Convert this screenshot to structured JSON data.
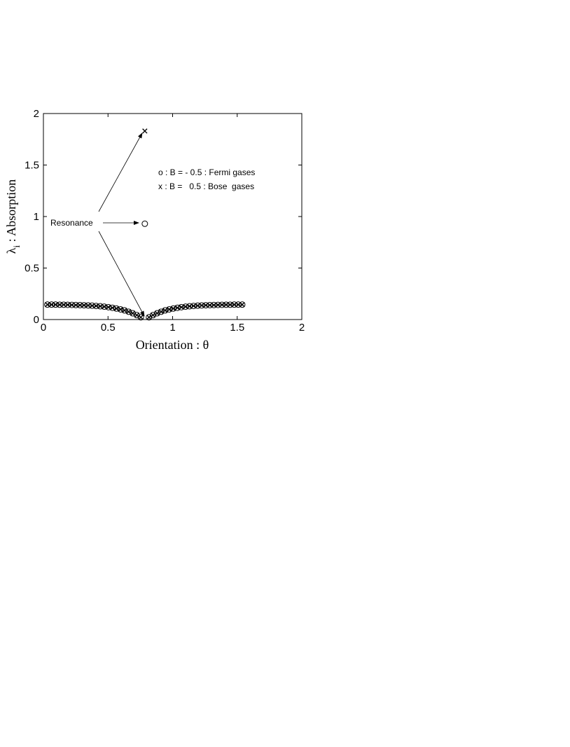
{
  "chart_data": {
    "type": "scatter",
    "xlabel": "Orientation : θ",
    "ylabel": {
      "symbol": "λ",
      "subscript": "i",
      "text": " :  Absorption"
    },
    "annotation": "Resonance",
    "xlim": [
      0,
      2
    ],
    "ylim": [
      0,
      2
    ],
    "xticks": [
      0,
      0.5,
      1,
      1.5,
      2
    ],
    "yticks": [
      0,
      0.5,
      1,
      1.5,
      2
    ],
    "x": [
      0.031,
      0.063,
      0.094,
      0.126,
      0.157,
      0.188,
      0.22,
      0.251,
      0.283,
      0.314,
      0.346,
      0.377,
      0.408,
      0.44,
      0.471,
      0.503,
      0.534,
      0.565,
      0.597,
      0.628,
      0.66,
      0.691,
      0.723,
      0.754,
      0.785,
      0.817,
      0.848,
      0.88,
      0.911,
      0.942,
      0.974,
      1.005,
      1.037,
      1.068,
      1.1,
      1.131,
      1.162,
      1.194,
      1.225,
      1.257,
      1.288,
      1.319,
      1.351,
      1.382,
      1.414,
      1.445,
      1.477,
      1.508,
      1.539
    ],
    "series": [
      {
        "name": "o : B = - 0.5 : Fermi gases",
        "marker": "o",
        "color": "#000000",
        "values": [
          0.145,
          0.145,
          0.145,
          0.144,
          0.144,
          0.143,
          0.142,
          0.141,
          0.14,
          0.139,
          0.137,
          0.135,
          0.132,
          0.129,
          0.125,
          0.12,
          0.114,
          0.107,
          0.099,
          0.089,
          0.076,
          0.061,
          0.043,
          0.022,
          0.93,
          0.022,
          0.043,
          0.061,
          0.076,
          0.089,
          0.099,
          0.107,
          0.114,
          0.12,
          0.125,
          0.129,
          0.132,
          0.135,
          0.137,
          0.139,
          0.14,
          0.141,
          0.142,
          0.143,
          0.144,
          0.144,
          0.145,
          0.145,
          0.145
        ]
      },
      {
        "name": "x : B =   0.5 : Bose  gases",
        "marker": "x",
        "color": "#000000",
        "values": [
          0.145,
          0.145,
          0.145,
          0.144,
          0.144,
          0.143,
          0.142,
          0.141,
          0.14,
          0.139,
          0.137,
          0.135,
          0.132,
          0.129,
          0.125,
          0.12,
          0.114,
          0.107,
          0.099,
          0.089,
          0.076,
          0.061,
          0.043,
          0.022,
          1.83,
          0.022,
          0.043,
          0.061,
          0.076,
          0.089,
          0.099,
          0.107,
          0.114,
          0.12,
          0.125,
          0.129,
          0.132,
          0.135,
          0.137,
          0.139,
          0.14,
          0.141,
          0.142,
          0.143,
          0.144,
          0.144,
          0.145,
          0.145,
          0.145
        ]
      }
    ]
  }
}
